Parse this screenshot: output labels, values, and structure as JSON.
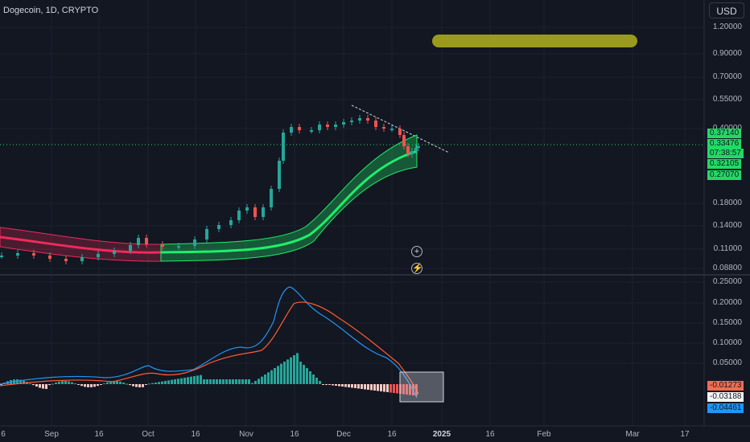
{
  "header": {
    "symbol": "Dogecoin, 1D, CRYPTO",
    "currency_button": "USD"
  },
  "price_axis": {
    "labels": [
      "1.20000",
      "0.90000",
      "0.70000",
      "0.55000",
      "0.40000",
      "0.18000",
      "0.14000",
      "0.11000",
      "0.08800"
    ]
  },
  "indicator_axis": {
    "labels": [
      "0.25000",
      "0.20000",
      "0.15000",
      "0.10000",
      "0.05000"
    ]
  },
  "price_tags": [
    {
      "text": "0.37140",
      "color": "#22d964"
    },
    {
      "text": "0.33476",
      "color": "#22d964"
    },
    {
      "text": "07:38:57",
      "color": "#22d964"
    },
    {
      "text": "0.32105",
      "color": "#22d964"
    },
    {
      "text": "0.27070",
      "color": "#22d964"
    }
  ],
  "indicator_tags": [
    {
      "text": "-0.01273",
      "color": "#f26c4f"
    },
    {
      "text": "-0.03188",
      "color": "#f5f5f5"
    },
    {
      "text": "-0.04461",
      "color": "#2196f3"
    }
  ],
  "time_axis": {
    "labels": [
      "6",
      "Sep",
      "16",
      "Oct",
      "16",
      "Nov",
      "16",
      "Dec",
      "16",
      "2025",
      "16",
      "Feb",
      "Mar",
      "17"
    ]
  },
  "colors": {
    "bg": "#131722",
    "up": "#26a69a",
    "down": "#ef5350",
    "band_green": "#1fef6a",
    "band_red": "#f02a5a",
    "macd": "#2196f3",
    "signal": "#ff5a36",
    "highlight": "#9a9a1e"
  },
  "icons": [
    "plus-circle-icon",
    "lightning-icon"
  ]
}
